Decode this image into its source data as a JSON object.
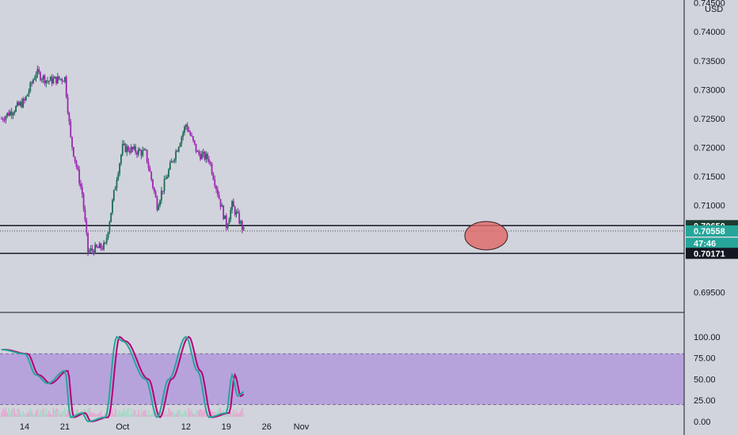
{
  "currency": "USD",
  "price_panel": {
    "y_ticks": [
      "0.74500",
      "0.74000",
      "0.73500",
      "0.73000",
      "0.72500",
      "0.72000",
      "0.71500",
      "0.71000",
      "0.69500"
    ],
    "horizontal_lines": [
      0.7065,
      0.70171
    ],
    "tags": [
      {
        "label": "0.70650",
        "value": 0.7065,
        "color": "#1e3b31"
      },
      {
        "label": "0.70558",
        "value": 0.70558,
        "color": "#26a69a"
      },
      {
        "label": "47:46",
        "value": 0.70345,
        "color": "#26a69a"
      },
      {
        "label": "0.70171",
        "value": 0.70171,
        "color": "#131722"
      }
    ],
    "highlight_ellipse_color": "#e06666"
  },
  "stoch_panel": {
    "y_ticks": [
      "100.00",
      "75.00",
      "50.00",
      "25.00",
      "0.00"
    ],
    "band": [
      20,
      80
    ],
    "band_color": "#b39ddb",
    "k_color": "#26a69a",
    "d_color": "#b3007a"
  },
  "x_ticks": [
    "14",
    "21",
    "Oct",
    "12",
    "19",
    "26",
    "Nov"
  ],
  "colors": {
    "up": "#1e6b56",
    "down": "#9c27b0",
    "background": "#d1d4dc"
  },
  "chart_data": {
    "type": "line",
    "title": "",
    "ylabel": "USD",
    "ylim": [
      0.6915,
      0.7455
    ],
    "series": [
      {
        "name": "",
        "x": [
          "Sep 10",
          "Sep 14",
          "Sep 16",
          "Sep 18",
          "Sep 21",
          "Sep 22",
          "Sep 24",
          "Sep 25",
          "Sep 28",
          "Sep 30",
          "Oct 1",
          "Oct 5",
          "Oct 7",
          "Oct 9",
          "Oct 12",
          "Oct 14",
          "Oct 16",
          "Oct 19",
          "Oct 20",
          "Oct 21",
          "Oct 22"
        ],
        "values": [
          0.725,
          0.728,
          0.733,
          0.7315,
          0.732,
          0.7215,
          0.712,
          0.702,
          0.703,
          0.715,
          0.72,
          0.719,
          0.71,
          0.716,
          0.724,
          0.719,
          0.718,
          0.7065,
          0.71,
          0.708,
          0.7056
        ]
      }
    ],
    "stochastic": {
      "ylim": [
        0,
        100
      ],
      "series": [
        {
          "name": "",
          "x": [
            "Sep 10",
            "Sep 14",
            "Sep 16",
            "Sep 18",
            "Sep 21",
            "Sep 22",
            "Sep 24",
            "Sep 25",
            "Sep 28",
            "Sep 30",
            "Oct 1",
            "Oct 5",
            "Oct 7",
            "Oct 9",
            "Oct 12",
            "Oct 14",
            "Oct 16",
            "Oct 19",
            "Oct 20",
            "Oct 21",
            "Oct 22"
          ],
          "values": [
            85,
            80,
            55,
            45,
            60,
            5,
            10,
            0,
            5,
            100,
            95,
            50,
            5,
            50,
            100,
            60,
            5,
            10,
            55,
            30,
            35
          ]
        }
      ]
    }
  }
}
